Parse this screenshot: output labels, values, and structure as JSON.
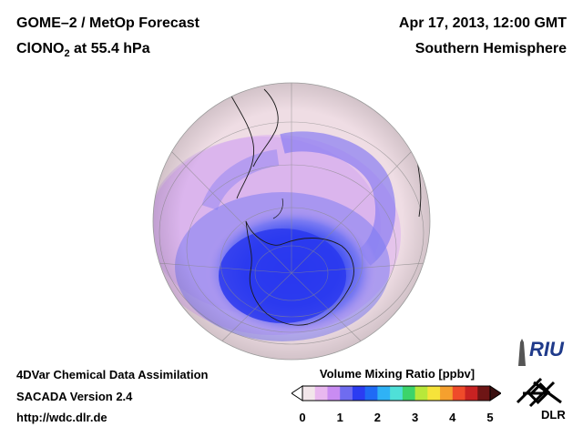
{
  "header": {
    "title_line1": "GOME–2 / MetOp Forecast",
    "title_line2_prefix": "ClONO",
    "title_line2_sub": "2",
    "title_line2_suffix": " at 55.4 hPa",
    "date": "Apr 17, 2013, 12:00 GMT",
    "region": "Southern Hemisphere"
  },
  "footer": {
    "line1": "4DVar Chemical Data Assimilation",
    "line2": "SACADA Version 2.4",
    "line3": "http://wdc.dlr.de"
  },
  "colorbar": {
    "title": "Volume Mixing Ratio [ppbv]",
    "ticks": [
      "0",
      "1",
      "2",
      "3",
      "4",
      "5"
    ],
    "colors": [
      "#f2e6ea",
      "#e9b8ef",
      "#c98cf2",
      "#6f6cf0",
      "#2b3cf2",
      "#1f6af5",
      "#2fb2f5",
      "#4fe0d8",
      "#3cd46a",
      "#b8e83a",
      "#f6e33a",
      "#f5a02e",
      "#ef4b2a",
      "#c82222",
      "#6e1515"
    ]
  },
  "logos": {
    "riu": "RIU",
    "dlr": "DLR"
  },
  "map_colors": {
    "background": "#efdde4",
    "low": "#2c3cf0",
    "mid": "#9a8cf4",
    "haze": "#d7a6ee"
  }
}
